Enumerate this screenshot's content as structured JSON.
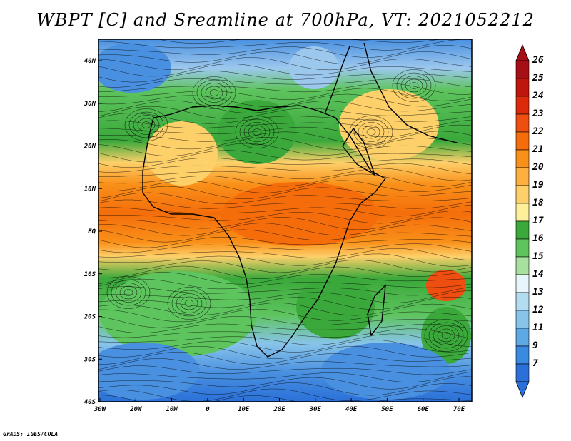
{
  "title": "WBPT [C] and Sreamline at 700hPa, VT: 2021052212",
  "credit": "GrADS: IGES/COLA",
  "map": {
    "lon_labels": [
      "30W",
      "20W",
      "10W",
      "0",
      "10E",
      "20E",
      "30E",
      "40E",
      "50E",
      "60E",
      "70E"
    ],
    "lat_labels": [
      "40N",
      "30N",
      "20N",
      "10N",
      "EQ",
      "10S",
      "20S",
      "30S",
      "40S"
    ],
    "variable": "WBPT",
    "units": "C",
    "level": "700hPa",
    "valid_time": "2021052212",
    "overlay": "streamlines"
  },
  "colorbar": {
    "labels": [
      "26",
      "25",
      "24",
      "23",
      "22",
      "21",
      "20",
      "19",
      "18",
      "17",
      "16",
      "15",
      "14",
      "13",
      "12",
      "11",
      "9",
      "7"
    ],
    "colors": [
      "#a50f15",
      "#c0150c",
      "#dc2a0a",
      "#ee4e10",
      "#f46d0a",
      "#f99019",
      "#fcb040",
      "#fdd06a",
      "#fef09a",
      "#3aa83a",
      "#5ec45e",
      "#a8e0a0",
      "#e6f6fa",
      "#b4dcf0",
      "#88c4ea",
      "#5ea8e6",
      "#3a8ae0",
      "#2a70d8"
    ]
  }
}
